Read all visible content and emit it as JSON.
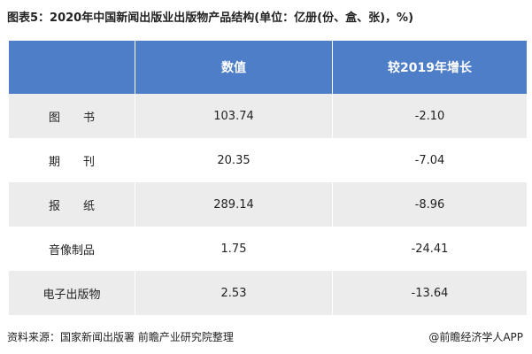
{
  "header": {
    "title": "图表5：2020年中国新闻出版业出版物产品结构(单位：亿册(份、盒、张)，%)"
  },
  "table": {
    "columns": [
      "数值",
      "较2019年增长"
    ],
    "rows": [
      [
        "图　　书",
        "103.74",
        "-2.10"
      ],
      [
        "期　　刊",
        "20.35",
        "-7.04"
      ],
      [
        "报　　纸",
        "289.14",
        "-8.96"
      ],
      [
        "音像制品",
        "1.75",
        "-24.41"
      ],
      [
        "电子出版物",
        "2.53",
        "-13.64"
      ]
    ]
  },
  "footer": {
    "source": "资料来源：国家新闻出版署 前瞻产业研究院整理",
    "brand": "@前瞻经济学人APP"
  }
}
